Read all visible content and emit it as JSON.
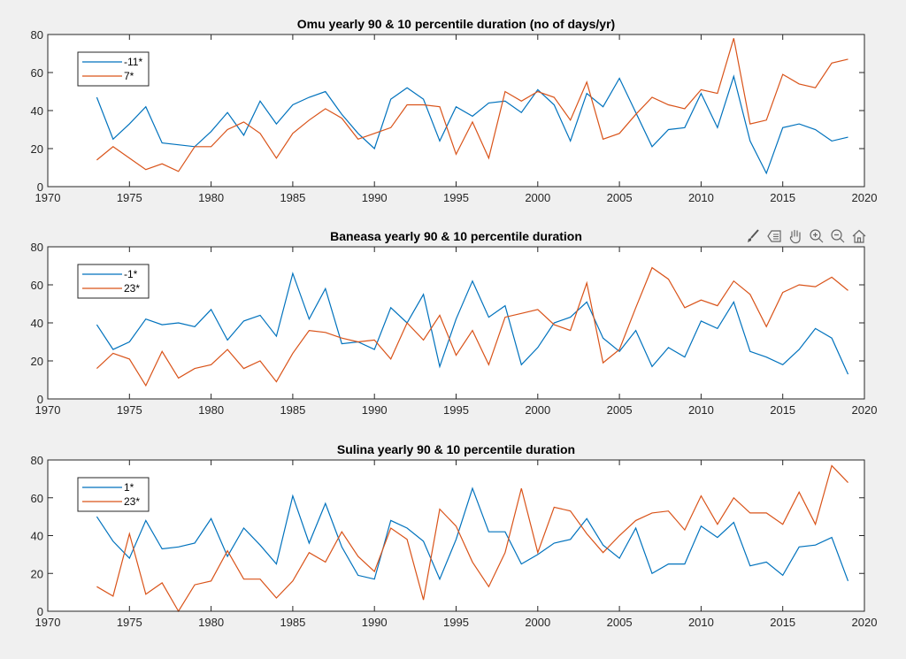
{
  "chart_data": [
    {
      "type": "line",
      "title": "Omu yearly 90 & 10 percentile duration (no of days/yr)",
      "xlabel": "",
      "ylabel": "",
      "xlim": [
        1970,
        2020
      ],
      "ylim": [
        0,
        80
      ],
      "xticks": [
        "1970",
        "1975",
        "1980",
        "1985",
        "1990",
        "1995",
        "2000",
        "2005",
        "2010",
        "2015",
        "2020"
      ],
      "yticks": [
        "0",
        "20",
        "40",
        "60",
        "80"
      ],
      "grid": false,
      "legend_position": "top-left",
      "x_start": 1973,
      "series": [
        {
          "name": "-11*",
          "color": "#0072BD",
          "values": [
            47,
            25,
            33,
            42,
            23,
            22,
            21,
            29,
            39,
            27,
            45,
            33,
            43,
            47,
            50,
            38,
            28,
            20,
            46,
            52,
            46,
            24,
            42,
            37,
            44,
            45,
            39,
            51,
            43,
            24,
            49,
            42,
            57,
            39,
            21,
            30,
            31,
            49,
            31,
            58,
            24,
            7,
            31,
            33,
            30,
            24,
            26
          ]
        },
        {
          "name": "7*",
          "color": "#D95319",
          "values": [
            14,
            21,
            15,
            9,
            12,
            8,
            21,
            21,
            30,
            34,
            28,
            15,
            28,
            35,
            41,
            36,
            25,
            28,
            31,
            43,
            43,
            42,
            17,
            34,
            15,
            50,
            45,
            50,
            47,
            35,
            55,
            25,
            28,
            38,
            47,
            43,
            41,
            51,
            49,
            78,
            33,
            35,
            59,
            54,
            52,
            65,
            67
          ]
        }
      ]
    },
    {
      "type": "line",
      "title": "Baneasa yearly 90 & 10 percentile duration",
      "xlabel": "",
      "ylabel": "",
      "xlim": [
        1970,
        2020
      ],
      "ylim": [
        0,
        80
      ],
      "xticks": [
        "1970",
        "1975",
        "1980",
        "1985",
        "1990",
        "1995",
        "2000",
        "2005",
        "2010",
        "2015",
        "2020"
      ],
      "yticks": [
        "0",
        "20",
        "40",
        "60",
        "80"
      ],
      "grid": false,
      "legend_position": "top-left",
      "x_start": 1973,
      "series": [
        {
          "name": "-1*",
          "color": "#0072BD",
          "values": [
            39,
            26,
            30,
            42,
            39,
            40,
            38,
            47,
            31,
            41,
            44,
            33,
            66,
            42,
            58,
            29,
            30,
            26,
            48,
            40,
            55,
            17,
            42,
            62,
            43,
            49,
            18,
            27,
            40,
            43,
            51,
            32,
            25,
            36,
            17,
            27,
            22,
            41,
            37,
            51,
            25,
            22,
            18,
            26,
            37,
            32,
            13
          ]
        },
        {
          "name": "23*",
          "color": "#D95319",
          "values": [
            16,
            24,
            21,
            7,
            25,
            11,
            16,
            18,
            26,
            16,
            20,
            9,
            24,
            36,
            35,
            32,
            30,
            31,
            21,
            40,
            31,
            44,
            23,
            36,
            18,
            43,
            45,
            47,
            39,
            36,
            61,
            19,
            26,
            48,
            69,
            63,
            48,
            52,
            49,
            62,
            55,
            38,
            56,
            60,
            59,
            64,
            57
          ]
        }
      ]
    },
    {
      "type": "line",
      "title": "Sulina yearly 90 & 10 percentile duration",
      "xlabel": "",
      "ylabel": "",
      "xlim": [
        1970,
        2020
      ],
      "ylim": [
        0,
        80
      ],
      "xticks": [
        "1970",
        "1975",
        "1980",
        "1985",
        "1990",
        "1995",
        "2000",
        "2005",
        "2010",
        "2015",
        "2020"
      ],
      "yticks": [
        "0",
        "20",
        "40",
        "60",
        "80"
      ],
      "grid": false,
      "legend_position": "top-left",
      "x_start": 1973,
      "series": [
        {
          "name": "1*",
          "color": "#0072BD",
          "values": [
            50,
            37,
            28,
            48,
            33,
            34,
            36,
            49,
            29,
            44,
            35,
            25,
            61,
            36,
            57,
            34,
            19,
            17,
            48,
            44,
            37,
            17,
            38,
            65,
            42,
            42,
            25,
            30,
            36,
            38,
            49,
            35,
            28,
            44,
            20,
            25,
            25,
            45,
            39,
            47,
            24,
            26,
            19,
            34,
            35,
            39,
            16
          ]
        },
        {
          "name": "23*",
          "color": "#D95319",
          "values": [
            13,
            8,
            41,
            9,
            15,
            0,
            14,
            16,
            32,
            17,
            17,
            7,
            16,
            31,
            26,
            42,
            29,
            21,
            44,
            38,
            6,
            54,
            45,
            26,
            13,
            31,
            65,
            31,
            55,
            53,
            41,
            31,
            40,
            48,
            52,
            53,
            43,
            61,
            46,
            60,
            52,
            52,
            46,
            63,
            46,
            77,
            68
          ]
        }
      ]
    }
  ],
  "toolbar": {
    "icons": [
      "brush-icon",
      "data-tip-icon",
      "pan-hand-icon",
      "zoom-in-icon",
      "zoom-out-icon",
      "home-icon"
    ]
  }
}
